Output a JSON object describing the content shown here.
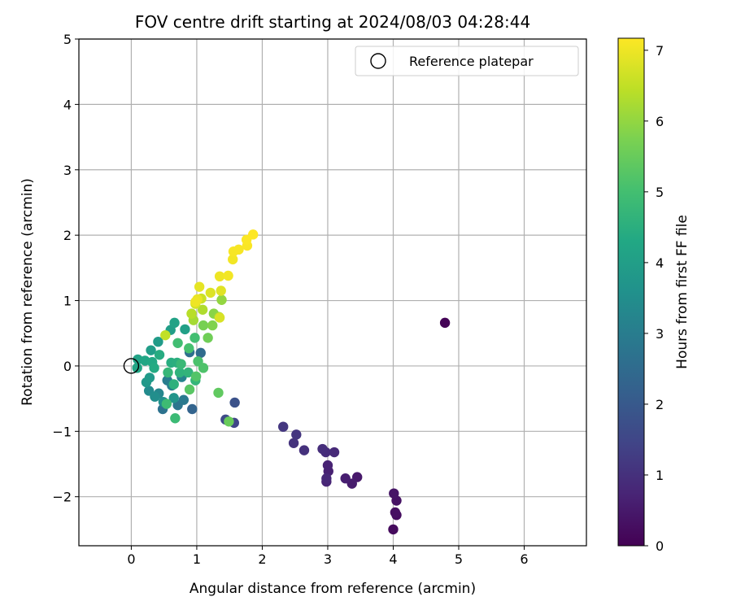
{
  "chart_data": {
    "type": "scatter",
    "title": "FOV centre drift starting at 2024/08/03 04:28:44",
    "xlabel": "Angular distance from reference (arcmin)",
    "ylabel": "Rotation from reference (arcmin)",
    "xlim": [
      -0.8,
      6.95
    ],
    "ylim": [
      -2.75,
      5.0
    ],
    "xticks": [
      0,
      1,
      2,
      3,
      4,
      5,
      6
    ],
    "yticks": [
      -2,
      -1,
      0,
      1,
      2,
      3,
      4,
      5
    ],
    "grid": true,
    "legend": {
      "position": "top-right",
      "entries": [
        "Reference platepar"
      ]
    },
    "reference_point": {
      "x": 0,
      "y": 0,
      "label": "Reference platepar"
    },
    "colorbar": {
      "label": "Hours from first FF file",
      "colormap": "viridis",
      "range": [
        0,
        7.17
      ],
      "ticks": [
        0,
        1,
        2,
        3,
        4,
        5,
        6,
        7
      ]
    },
    "series": [
      {
        "color_value_unit": "hours",
        "points": [
          {
            "x": 4.79,
            "y": 0.66,
            "c": 0.05
          },
          {
            "x": 4.0,
            "y": -2.5,
            "c": 0.2
          },
          {
            "x": 4.05,
            "y": -2.28,
            "c": 0.25
          },
          {
            "x": 4.03,
            "y": -2.24,
            "c": 0.3
          },
          {
            "x": 4.05,
            "y": -2.06,
            "c": 0.35
          },
          {
            "x": 4.01,
            "y": -1.95,
            "c": 0.4
          },
          {
            "x": 3.45,
            "y": -1.7,
            "c": 0.5
          },
          {
            "x": 3.37,
            "y": -1.8,
            "c": 0.55
          },
          {
            "x": 3.27,
            "y": -1.72,
            "c": 0.6
          },
          {
            "x": 3.01,
            "y": -1.61,
            "c": 0.65
          },
          {
            "x": 3.0,
            "y": -1.52,
            "c": 0.7
          },
          {
            "x": 2.98,
            "y": -1.77,
            "c": 0.75
          },
          {
            "x": 2.98,
            "y": -1.72,
            "c": 0.8
          },
          {
            "x": 3.1,
            "y": -1.32,
            "c": 0.85
          },
          {
            "x": 2.97,
            "y": -1.32,
            "c": 0.9
          },
          {
            "x": 2.92,
            "y": -1.27,
            "c": 0.95
          },
          {
            "x": 2.64,
            "y": -1.29,
            "c": 1.0
          },
          {
            "x": 2.48,
            "y": -1.18,
            "c": 1.05
          },
          {
            "x": 2.52,
            "y": -1.05,
            "c": 1.1
          },
          {
            "x": 2.32,
            "y": -0.93,
            "c": 1.15
          },
          {
            "x": 1.57,
            "y": -0.87,
            "c": 1.5
          },
          {
            "x": 1.44,
            "y": -0.82,
            "c": 1.6
          },
          {
            "x": 1.58,
            "y": -0.56,
            "c": 1.8
          },
          {
            "x": 0.93,
            "y": -0.66,
            "c": 2.3
          },
          {
            "x": 1.06,
            "y": 0.2,
            "c": 2.5
          },
          {
            "x": 0.89,
            "y": 0.21,
            "c": 2.6
          },
          {
            "x": 0.48,
            "y": -0.66,
            "c": 2.7
          },
          {
            "x": 0.71,
            "y": -0.6,
            "c": 2.8
          },
          {
            "x": 0.8,
            "y": -0.52,
            "c": 2.9
          },
          {
            "x": 0.55,
            "y": -0.22,
            "c": 3.0
          },
          {
            "x": 0.62,
            "y": -0.3,
            "c": 3.1
          },
          {
            "x": 0.77,
            "y": -0.17,
            "c": 3.2
          },
          {
            "x": 0.42,
            "y": -0.42,
            "c": 3.3
          },
          {
            "x": 0.27,
            "y": -0.38,
            "c": 3.4
          },
          {
            "x": 0.36,
            "y": -0.47,
            "c": 3.5
          },
          {
            "x": 0.49,
            "y": -0.55,
            "c": 3.6
          },
          {
            "x": 0.65,
            "y": -0.49,
            "c": 3.7
          },
          {
            "x": 0.23,
            "y": -0.25,
            "c": 3.8
          },
          {
            "x": 0.28,
            "y": -0.18,
            "c": 3.85
          },
          {
            "x": 0.41,
            "y": 0.37,
            "c": 3.9
          },
          {
            "x": 0.3,
            "y": 0.24,
            "c": 3.95
          },
          {
            "x": 0.6,
            "y": 0.55,
            "c": 4.0
          },
          {
            "x": 0.82,
            "y": 0.56,
            "c": 4.05
          },
          {
            "x": 0.66,
            "y": 0.66,
            "c": 4.1
          },
          {
            "x": 0.1,
            "y": 0.1,
            "c": 4.15
          },
          {
            "x": 0.09,
            "y": -0.03,
            "c": 4.2
          },
          {
            "x": 0.21,
            "y": 0.08,
            "c": 4.25
          },
          {
            "x": 0.32,
            "y": 0.06,
            "c": 4.3
          },
          {
            "x": 0.35,
            "y": -0.03,
            "c": 4.35
          },
          {
            "x": 0.43,
            "y": 0.17,
            "c": 4.4
          },
          {
            "x": 0.61,
            "y": 0.05,
            "c": 4.45
          },
          {
            "x": 0.7,
            "y": 0.05,
            "c": 4.5
          },
          {
            "x": 0.65,
            "y": -0.28,
            "c": 4.55
          },
          {
            "x": 0.74,
            "y": -0.1,
            "c": 4.6
          },
          {
            "x": 0.87,
            "y": -0.1,
            "c": 4.65
          },
          {
            "x": 0.98,
            "y": -0.22,
            "c": 4.7
          },
          {
            "x": 0.56,
            "y": -0.1,
            "c": 4.75
          },
          {
            "x": 0.76,
            "y": 0.03,
            "c": 4.8
          },
          {
            "x": 0.67,
            "y": -0.8,
            "c": 4.85
          },
          {
            "x": 0.54,
            "y": -0.58,
            "c": 4.9
          },
          {
            "x": 0.71,
            "y": 0.35,
            "c": 4.95
          },
          {
            "x": 0.97,
            "y": 0.43,
            "c": 5.0
          },
          {
            "x": 0.88,
            "y": 0.27,
            "c": 5.05
          },
          {
            "x": 1.02,
            "y": 0.07,
            "c": 5.1
          },
          {
            "x": 1.1,
            "y": -0.03,
            "c": 5.15
          },
          {
            "x": 0.99,
            "y": -0.16,
            "c": 5.2
          },
          {
            "x": 0.89,
            "y": -0.36,
            "c": 5.3
          },
          {
            "x": 1.33,
            "y": -0.41,
            "c": 5.4
          },
          {
            "x": 1.49,
            "y": -0.85,
            "c": 5.5
          },
          {
            "x": 1.17,
            "y": 0.43,
            "c": 5.6
          },
          {
            "x": 1.1,
            "y": 0.62,
            "c": 5.7
          },
          {
            "x": 1.24,
            "y": 0.62,
            "c": 5.8
          },
          {
            "x": 1.26,
            "y": 0.8,
            "c": 5.9
          },
          {
            "x": 1.38,
            "y": 1.01,
            "c": 6.0
          },
          {
            "x": 1.34,
            "y": 0.75,
            "c": 6.1
          },
          {
            "x": 0.95,
            "y": 0.7,
            "c": 6.2
          },
          {
            "x": 1.09,
            "y": 0.86,
            "c": 6.3
          },
          {
            "x": 0.92,
            "y": 0.8,
            "c": 6.4
          },
          {
            "x": 0.52,
            "y": 0.47,
            "c": 6.5
          },
          {
            "x": 1.07,
            "y": 1.03,
            "c": 6.6
          },
          {
            "x": 0.98,
            "y": 0.95,
            "c": 6.7
          },
          {
            "x": 1.35,
            "y": 0.74,
            "c": 6.75
          },
          {
            "x": 1.21,
            "y": 1.12,
            "c": 6.8
          },
          {
            "x": 1.37,
            "y": 1.15,
            "c": 6.85
          },
          {
            "x": 1.04,
            "y": 1.21,
            "c": 6.9
          },
          {
            "x": 1.01,
            "y": 1.02,
            "c": 6.95
          },
          {
            "x": 0.98,
            "y": 0.98,
            "c": 7.0
          },
          {
            "x": 1.35,
            "y": 1.37,
            "c": 7.0
          },
          {
            "x": 1.48,
            "y": 1.38,
            "c": 7.05
          },
          {
            "x": 1.55,
            "y": 1.63,
            "c": 7.05
          },
          {
            "x": 1.56,
            "y": 1.75,
            "c": 7.1
          },
          {
            "x": 1.64,
            "y": 1.78,
            "c": 7.1
          },
          {
            "x": 1.77,
            "y": 1.84,
            "c": 7.12
          },
          {
            "x": 1.76,
            "y": 1.93,
            "c": 7.15
          },
          {
            "x": 1.86,
            "y": 2.01,
            "c": 7.17
          }
        ]
      }
    ]
  }
}
